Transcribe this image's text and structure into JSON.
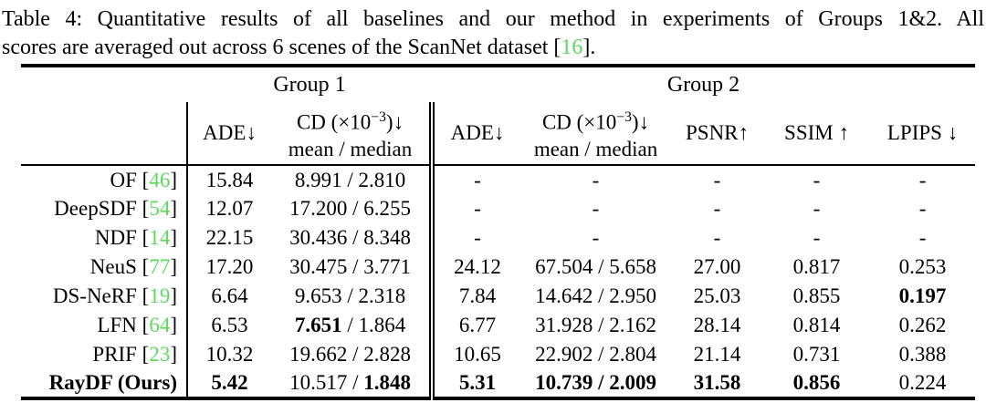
{
  "caption": {
    "line1": "Table 4: Quantitative results of all baselines and our method in experiments of Groups 1&2. All",
    "line2_before": "scores are averaged out across 6 scenes of the ScanNet dataset [",
    "line2_cite": "16",
    "line2_after": "]."
  },
  "header": {
    "group1": "Group 1",
    "group2": "Group 2",
    "ade": "ADE↓",
    "cd_prefix": "CD (×10",
    "cd_sup": "−3",
    "cd_suffix": ")↓",
    "cd_line2": "mean / median",
    "psnr": "PSNR↑",
    "ssim": "SSIM ↑",
    "lpips": "LPIPS ↓"
  },
  "colors": {
    "citation_green": "#5BDB5B",
    "text_black": "#000000"
  },
  "table": {
    "rows": [
      {
        "method": "OF",
        "cite": "46",
        "bold_label": false,
        "cells": [
          [
            {
              "t": "15.84"
            }
          ],
          [
            {
              "t": "8.991 / 2.810"
            }
          ],
          [
            {
              "t": "-"
            }
          ],
          [
            {
              "t": "-"
            }
          ],
          [
            {
              "t": "-"
            }
          ],
          [
            {
              "t": "-"
            }
          ],
          [
            {
              "t": "-"
            }
          ]
        ]
      },
      {
        "method": "DeepSDF",
        "cite": "54",
        "bold_label": false,
        "cells": [
          [
            {
              "t": "12.07"
            }
          ],
          [
            {
              "t": "17.200 / 6.255"
            }
          ],
          [
            {
              "t": "-"
            }
          ],
          [
            {
              "t": "-"
            }
          ],
          [
            {
              "t": "-"
            }
          ],
          [
            {
              "t": "-"
            }
          ],
          [
            {
              "t": "-"
            }
          ]
        ]
      },
      {
        "method": "NDF",
        "cite": "14",
        "bold_label": false,
        "cells": [
          [
            {
              "t": "22.15"
            }
          ],
          [
            {
              "t": "30.436 / 8.348"
            }
          ],
          [
            {
              "t": "-"
            }
          ],
          [
            {
              "t": "-"
            }
          ],
          [
            {
              "t": "-"
            }
          ],
          [
            {
              "t": "-"
            }
          ],
          [
            {
              "t": "-"
            }
          ]
        ]
      },
      {
        "method": "NeuS",
        "cite": "77",
        "bold_label": false,
        "cells": [
          [
            {
              "t": "17.20"
            }
          ],
          [
            {
              "t": "30.475 / 3.771"
            }
          ],
          [
            {
              "t": "24.12"
            }
          ],
          [
            {
              "t": "67.504 / 5.658"
            }
          ],
          [
            {
              "t": "27.00"
            }
          ],
          [
            {
              "t": "0.817"
            }
          ],
          [
            {
              "t": "0.253"
            }
          ]
        ]
      },
      {
        "method": "DS-NeRF",
        "cite": "19",
        "bold_label": false,
        "cells": [
          [
            {
              "t": "6.64"
            }
          ],
          [
            {
              "t": "9.653 / 2.318"
            }
          ],
          [
            {
              "t": "7.84"
            }
          ],
          [
            {
              "t": "14.642 / 2.950"
            }
          ],
          [
            {
              "t": "25.03"
            }
          ],
          [
            {
              "t": "0.855"
            }
          ],
          [
            {
              "t": "0.197",
              "b": true
            }
          ]
        ]
      },
      {
        "method": "LFN",
        "cite": "64",
        "bold_label": false,
        "cells": [
          [
            {
              "t": "6.53"
            }
          ],
          [
            {
              "t": "7.651",
              "b": true
            },
            {
              "t": " / 1.864"
            }
          ],
          [
            {
              "t": "6.77"
            }
          ],
          [
            {
              "t": "31.928 / 2.162"
            }
          ],
          [
            {
              "t": "28.14"
            }
          ],
          [
            {
              "t": "0.814"
            }
          ],
          [
            {
              "t": "0.262"
            }
          ]
        ]
      },
      {
        "method": "PRIF",
        "cite": "23",
        "bold_label": false,
        "cells": [
          [
            {
              "t": "10.32"
            }
          ],
          [
            {
              "t": "19.662 / 2.828"
            }
          ],
          [
            {
              "t": "10.65"
            }
          ],
          [
            {
              "t": "22.902 / 2.804"
            }
          ],
          [
            {
              "t": "21.14"
            }
          ],
          [
            {
              "t": "0.731"
            }
          ],
          [
            {
              "t": "0.388"
            }
          ]
        ]
      },
      {
        "method": "RayDF (Ours)",
        "cite": null,
        "bold_label": true,
        "cells": [
          [
            {
              "t": "5.42",
              "b": true
            }
          ],
          [
            {
              "t": "10.517 / "
            },
            {
              "t": "1.848",
              "b": true
            }
          ],
          [
            {
              "t": "5.31",
              "b": true
            }
          ],
          [
            {
              "t": "10.739 / 2.009",
              "b": true
            }
          ],
          [
            {
              "t": "31.58",
              "b": true
            }
          ],
          [
            {
              "t": "0.856",
              "b": true
            }
          ],
          [
            {
              "t": "0.224"
            }
          ]
        ]
      }
    ]
  }
}
